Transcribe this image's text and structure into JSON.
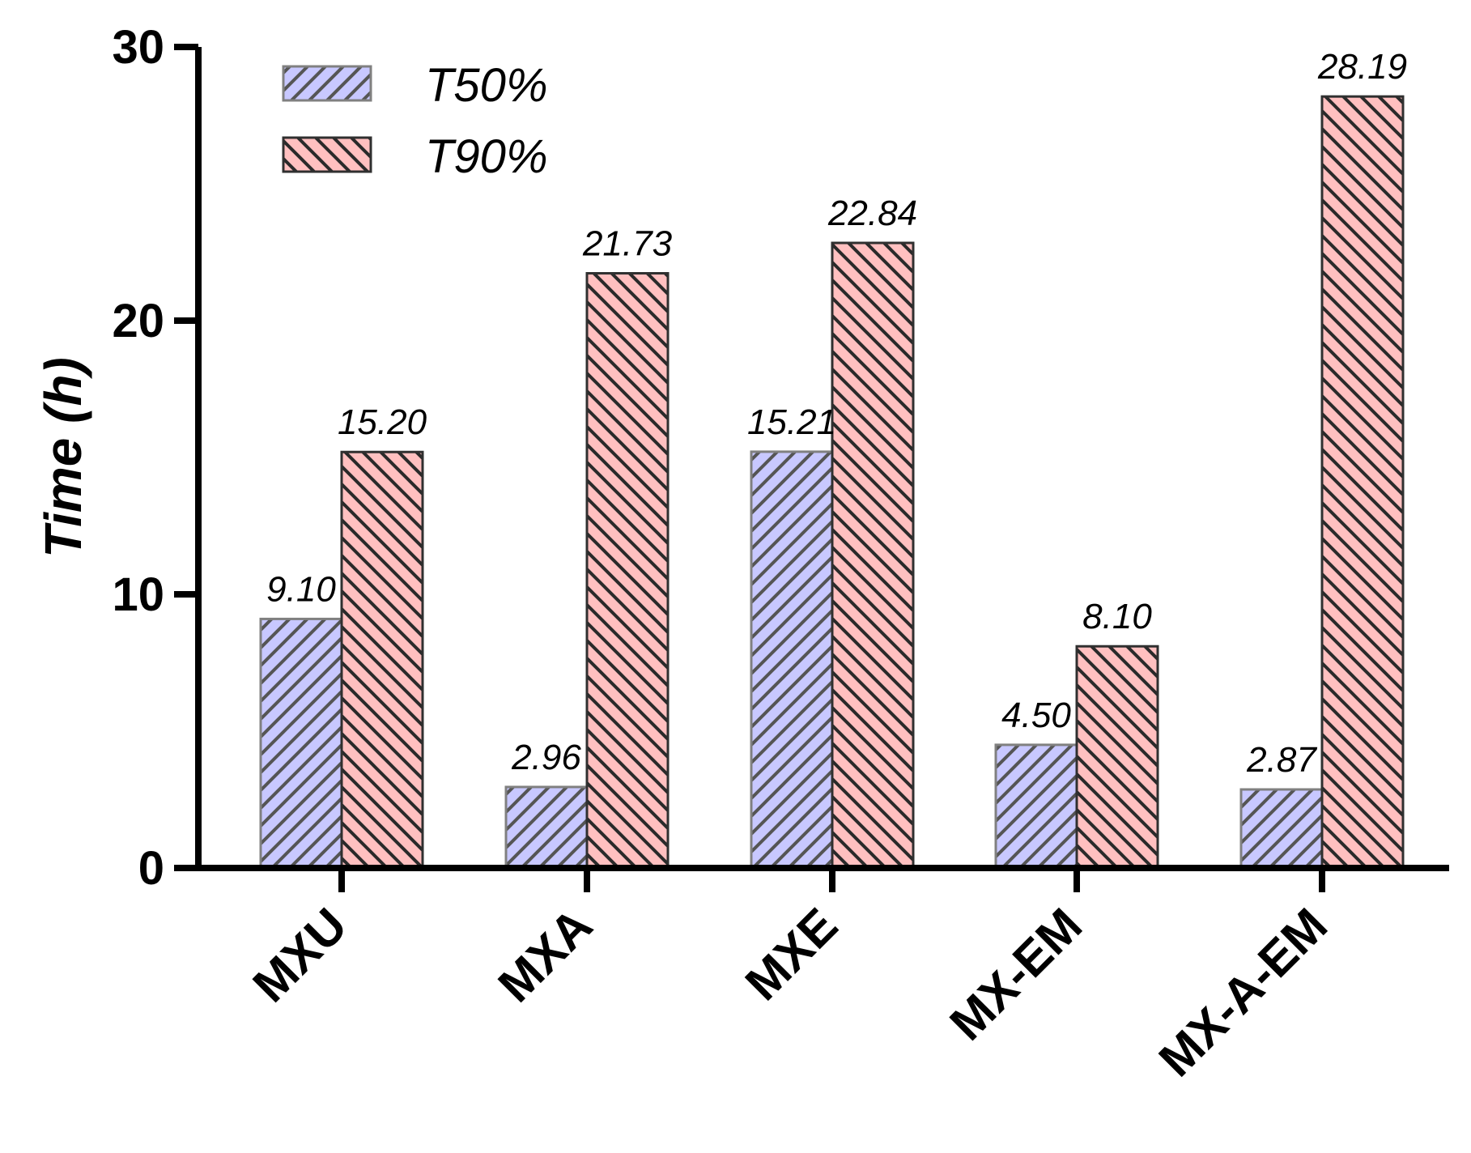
{
  "chart_data": {
    "type": "bar",
    "title": "",
    "xlabel": "",
    "ylabel": "Time (h)",
    "ylim": [
      0,
      30
    ],
    "yticks": [
      0,
      10,
      20,
      30
    ],
    "categories": [
      "MXU",
      "MXA",
      "MXE",
      "MX-EM",
      "MX-A-EM"
    ],
    "series": [
      {
        "name": "T50%",
        "values": [
          9.1,
          2.96,
          15.21,
          4.5,
          2.87
        ],
        "labels": [
          "9.10",
          "2.96",
          "15.21",
          "4.50",
          "2.87"
        ],
        "color": "#c8c8ff",
        "pattern": "diagonal-forward",
        "stroke": "#808080"
      },
      {
        "name": "T90%",
        "values": [
          15.2,
          21.73,
          22.84,
          8.1,
          28.19
        ],
        "labels": [
          "15.20",
          "21.73",
          "22.84",
          "8.10",
          "28.19"
        ],
        "color": "#ffc0c0",
        "pattern": "diagonal-backward",
        "stroke": "#303030"
      }
    ],
    "legend_position": "top-left",
    "grid": false
  }
}
